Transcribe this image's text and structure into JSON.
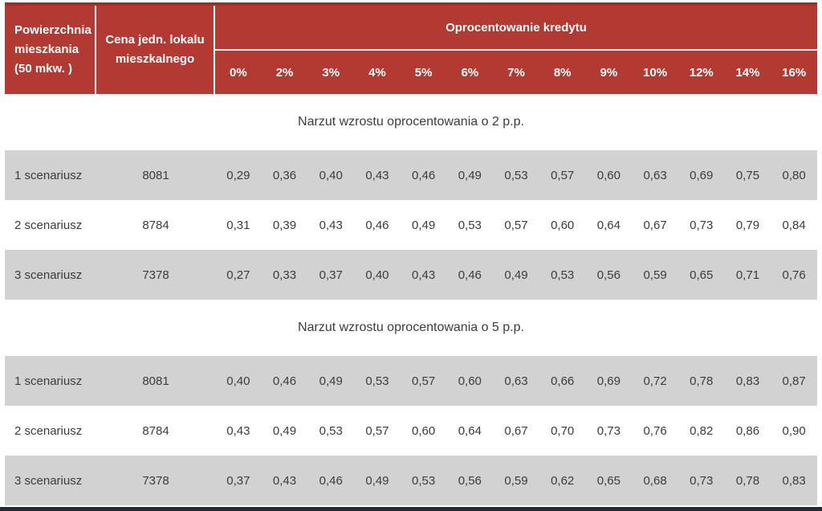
{
  "header": {
    "col1": "Powierzchnia mieszkania (50 mkw. )",
    "col2": "Cena jedn. lokalu mieszkalnego",
    "group_title": "Oprocentowanie kredytu",
    "rate_columns": [
      "0%",
      "2%",
      "3%",
      "4%",
      "5%",
      "6%",
      "7%",
      "8%",
      "9%",
      "10%",
      "12%",
      "14%",
      "16%"
    ]
  },
  "sections": [
    {
      "title": "Narzut wzrostu oprocentowania o 2 p.p.",
      "rows": [
        {
          "label": "1 scenariusz",
          "price": "8081",
          "values": [
            "0,29",
            "0,36",
            "0,40",
            "0,43",
            "0,46",
            "0,49",
            "0,53",
            "0,57",
            "0,60",
            "0,63",
            "0,69",
            "0,75",
            "0,80"
          ]
        },
        {
          "label": "2 scenariusz",
          "price": "8784",
          "values": [
            "0,31",
            "0,39",
            "0,43",
            "0,46",
            "0,49",
            "0,53",
            "0,57",
            "0,60",
            "0,64",
            "0,67",
            "0,73",
            "0,79",
            "0,84"
          ]
        },
        {
          "label": "3 scenariusz",
          "price": "7378",
          "values": [
            "0,27",
            "0,33",
            "0,37",
            "0,40",
            "0,43",
            "0,46",
            "0,49",
            "0,53",
            "0,56",
            "0,59",
            "0,65",
            "0,71",
            "0,76"
          ]
        }
      ]
    },
    {
      "title": "Narzut wzrostu oprocentowania o 5 p.p.",
      "rows": [
        {
          "label": "1 scenariusz",
          "price": "8081",
          "values": [
            "0,40",
            "0,46",
            "0,49",
            "0,53",
            "0,57",
            "0,60",
            "0,63",
            "0,66",
            "0,69",
            "0,72",
            "0,78",
            "0,83",
            "0,87"
          ]
        },
        {
          "label": "2 scenariusz",
          "price": "8784",
          "values": [
            "0,43",
            "0,49",
            "0,53",
            "0,57",
            "0,60",
            "0,64",
            "0,67",
            "0,70",
            "0,73",
            "0,76",
            "0,82",
            "0,86",
            "0,90"
          ]
        },
        {
          "label": "3 scenariusz",
          "price": "7378",
          "values": [
            "0,37",
            "0,43",
            "0,46",
            "0,49",
            "0,53",
            "0,56",
            "0,59",
            "0,62",
            "0,65",
            "0,68",
            "0,73",
            "0,78",
            "0,83"
          ]
        }
      ]
    }
  ],
  "colors": {
    "accent": "#b23a32",
    "accent-dark": "#a02d26",
    "row-gray": "#d2d2d2",
    "text-dark": "#3c3c3c",
    "bar-dark": "#262b33"
  }
}
